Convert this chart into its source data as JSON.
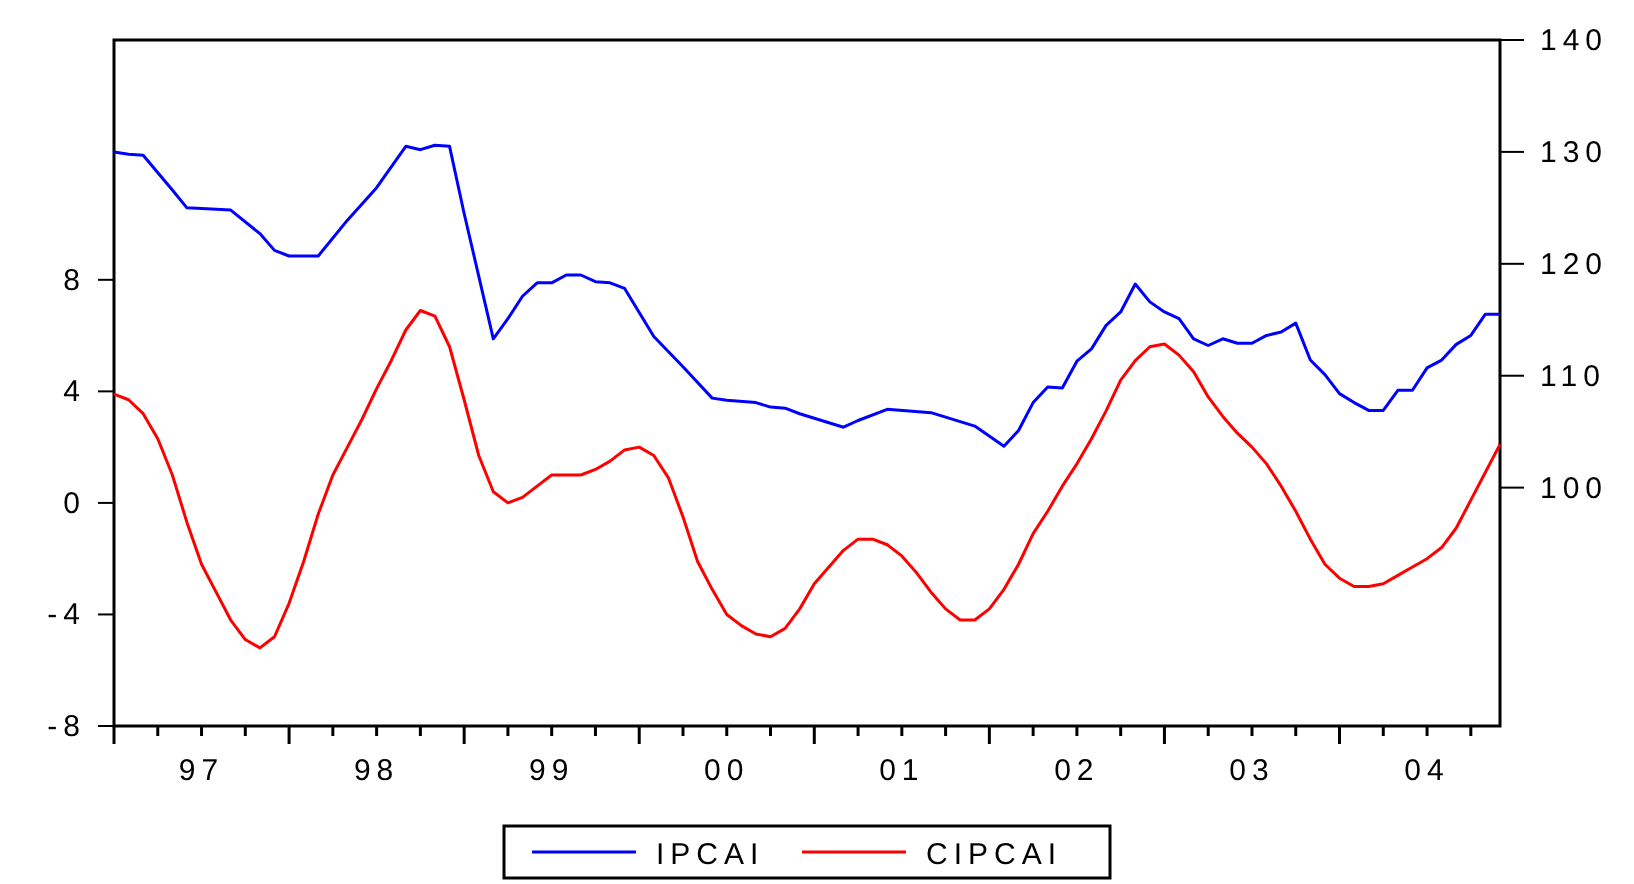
{
  "chart_data": {
    "type": "line",
    "xlim": [
      "1997-01",
      "2004-12"
    ],
    "xticks": [
      {
        "value": "1997-01",
        "label": null
      },
      {
        "value": "1997-04",
        "label": null
      },
      {
        "value": "1997-07",
        "label": "97"
      },
      {
        "value": "1997-10",
        "label": null
      },
      {
        "value": "1998-01",
        "label": null
      },
      {
        "value": "1998-04",
        "label": null
      },
      {
        "value": "1998-07",
        "label": "98"
      },
      {
        "value": "1998-10",
        "label": null
      },
      {
        "value": "1999-01",
        "label": null
      },
      {
        "value": "1999-04",
        "label": null
      },
      {
        "value": "1999-07",
        "label": "99"
      },
      {
        "value": "1999-10",
        "label": null
      },
      {
        "value": "2000-01",
        "label": null
      },
      {
        "value": "2000-04",
        "label": null
      },
      {
        "value": "2000-07",
        "label": "00"
      },
      {
        "value": "2000-10",
        "label": null
      },
      {
        "value": "2001-01",
        "label": null
      },
      {
        "value": "2001-04",
        "label": null
      },
      {
        "value": "2001-07",
        "label": "01"
      },
      {
        "value": "2001-10",
        "label": null
      },
      {
        "value": "2002-01",
        "label": null
      },
      {
        "value": "2002-04",
        "label": null
      },
      {
        "value": "2002-07",
        "label": "02"
      },
      {
        "value": "2002-10",
        "label": null
      },
      {
        "value": "2003-01",
        "label": null
      },
      {
        "value": "2003-04",
        "label": null
      },
      {
        "value": "2003-07",
        "label": "03"
      },
      {
        "value": "2003-10",
        "label": null
      },
      {
        "value": "2004-01",
        "label": null
      },
      {
        "value": "2004-04",
        "label": null
      },
      {
        "value": "2004-07",
        "label": "04"
      },
      {
        "value": "2004-10",
        "label": null
      }
    ],
    "ylim": [
      -8,
      16.6
    ],
    "yticks": [
      -8,
      -4,
      0,
      4,
      8
    ],
    "y2lim": [
      78.7,
      140
    ],
    "y2ticks": [
      100,
      110,
      120,
      130,
      140
    ],
    "legend": "bottom",
    "line_style": "solid",
    "series": [
      {
        "name": "IPCAI",
        "color": "#0000ff",
        "axis": "y2",
        "x": [
          "1997-01",
          "1997-02",
          "1997-03",
          "1997-05",
          "1997-06",
          "1997-09",
          "1997-11",
          "1997-12",
          "1998-01",
          "1998-03",
          "1998-05",
          "1998-07",
          "1998-09",
          "1998-10",
          "1998-11",
          "1998-12",
          "1999-01",
          "1999-03",
          "1999-04",
          "1999-05",
          "1999-06",
          "1999-07",
          "1999-08",
          "1999-09",
          "1999-10",
          "1999-11",
          "1999-12",
          "2000-02",
          "2000-04",
          "2000-06",
          "2000-07",
          "2000-09",
          "2000-10",
          "2000-11",
          "2000-12",
          "2001-03",
          "2001-04",
          "2001-06",
          "2001-09",
          "2001-12",
          "2002-02",
          "2002-03",
          "2002-04",
          "2002-05",
          "2002-06",
          "2002-07",
          "2002-08",
          "2002-09",
          "2002-10",
          "2002-11",
          "2002-12",
          "2003-01",
          "2003-02",
          "2003-03",
          "2003-04",
          "2003-05",
          "2003-06",
          "2003-07",
          "2003-08",
          "2003-09",
          "2003-10",
          "2003-11",
          "2003-12",
          "2004-01",
          "2004-02",
          "2004-03",
          "2004-04",
          "2004-05",
          "2004-06",
          "2004-07",
          "2004-08",
          "2004-09",
          "2004-10",
          "2004-11",
          "2004-12"
        ],
        "values": [
          130,
          129.8,
          129.7,
          126.6,
          125,
          124.8,
          122.7,
          121.2,
          120.7,
          120.7,
          123.9,
          126.8,
          130.5,
          130.2,
          130.6,
          130.5,
          124.5,
          113.3,
          115.1,
          117.1,
          118.3,
          118.3,
          119,
          119,
          118.4,
          118.3,
          117.8,
          113.5,
          110.8,
          108,
          107.8,
          107.6,
          107.2,
          107.1,
          106.6,
          105.4,
          106,
          107,
          106.7,
          105.5,
          103.7,
          105.1,
          107.6,
          109,
          108.9,
          111.3,
          112.4,
          114.5,
          115.7,
          118.2,
          116.6,
          115.7,
          115.1,
          113.3,
          112.7,
          113.3,
          112.9,
          112.9,
          113.6,
          113.9,
          114.7,
          111.4,
          110.1,
          108.4,
          107.6,
          106.9,
          106.9,
          108.7,
          108.7,
          110.7,
          111.4,
          112.8,
          113.6,
          115.5,
          115.5
        ]
      },
      {
        "name": "CIPCAI",
        "color": "#ff0000",
        "x": [
          "1997-01",
          "1997-02",
          "1997-03",
          "1997-04",
          "1997-05",
          "1997-06",
          "1997-07",
          "1997-08",
          "1997-09",
          "1997-10",
          "1997-11",
          "1997-12",
          "1998-01",
          "1998-02",
          "1998-03",
          "1998-04",
          "1998-05",
          "1998-06",
          "1998-07",
          "1998-08",
          "1998-09",
          "1998-10",
          "1998-11",
          "1998-12",
          "1999-01",
          "1999-02",
          "1999-03",
          "1999-04",
          "1999-05",
          "1999-06",
          "1999-07",
          "1999-08",
          "1999-09",
          "1999-10",
          "1999-11",
          "1999-12",
          "2000-01",
          "2000-02",
          "2000-03",
          "2000-04",
          "2000-05",
          "2000-06",
          "2000-07",
          "2000-08",
          "2000-09",
          "2000-10",
          "2000-11",
          "2000-12",
          "2001-01",
          "2001-02",
          "2001-03",
          "2001-04",
          "2001-05",
          "2001-06",
          "2001-07",
          "2001-08",
          "2001-09",
          "2001-10",
          "2001-11",
          "2001-12",
          "2002-01",
          "2002-02",
          "2002-03",
          "2002-04",
          "2002-05",
          "2002-06",
          "2002-07",
          "2002-08",
          "2002-09",
          "2002-10",
          "2002-11",
          "2002-12",
          "2003-01",
          "2003-02",
          "2003-03",
          "2003-04",
          "2003-05",
          "2003-06",
          "2003-07",
          "2003-08",
          "2003-09",
          "2003-10",
          "2003-11",
          "2003-12",
          "2004-01",
          "2004-02",
          "2004-03",
          "2004-04",
          "2004-05",
          "2004-06",
          "2004-07",
          "2004-08",
          "2004-09",
          "2004-10",
          "2004-11",
          "2004-12"
        ],
        "values": [
          3.9,
          3.7,
          3.2,
          2.3,
          1,
          -0.7,
          -2.2,
          -3.2,
          -4.2,
          -4.9,
          -5.2,
          -4.8,
          -3.6,
          -2.1,
          -0.4,
          1,
          2,
          3,
          4.1,
          5.1,
          6.2,
          6.9,
          6.7,
          5.6,
          3.7,
          1.7,
          0.4,
          0,
          0.2,
          0.6,
          1,
          1,
          1,
          1.2,
          1.5,
          1.9,
          2,
          1.7,
          0.9,
          -0.5,
          -2.1,
          -3.1,
          -4,
          -4.4,
          -4.7,
          -4.8,
          -4.5,
          -3.8,
          -2.9,
          -2.3,
          -1.7,
          -1.3,
          -1.3,
          -1.5,
          -1.9,
          -2.5,
          -3.2,
          -3.8,
          -4.2,
          -4.2,
          -3.8,
          -3.1,
          -2.2,
          -1.1,
          -0.3,
          0.6,
          1.4,
          2.3,
          3.3,
          4.4,
          5.1,
          5.6,
          5.7,
          5.3,
          4.7,
          3.8,
          3.1,
          2.5,
          2,
          1.4,
          0.6,
          -0.3,
          -1.3,
          -2.2,
          -2.7,
          -3,
          -3,
          -2.9,
          -2.6,
          -2.3,
          -2,
          -1.6,
          -0.9,
          0.1,
          1.1,
          2.1
        ]
      }
    ]
  }
}
